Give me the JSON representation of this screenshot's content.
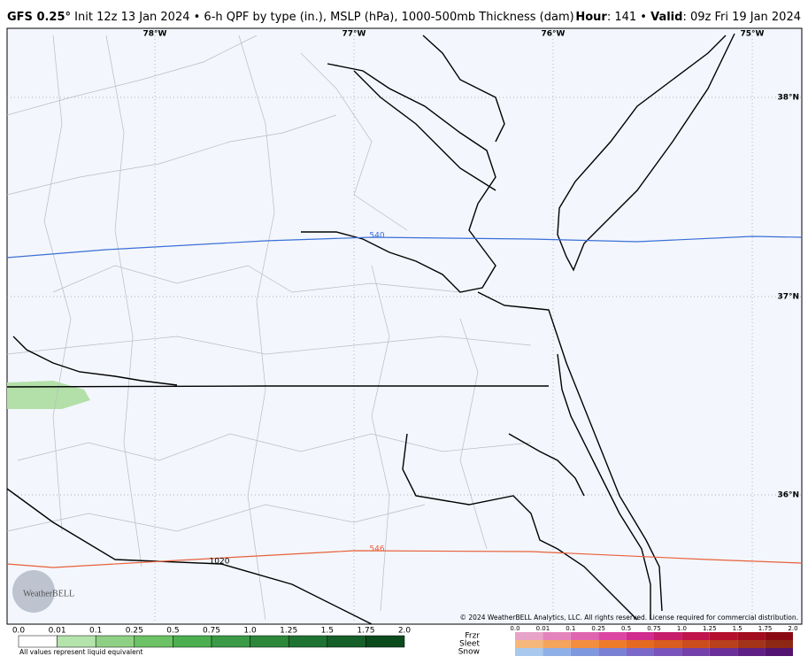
{
  "header": {
    "title": "GFS 0.25°",
    "init": "Init 12z 13 Jan 2024 • 6-h QPF by type (in.), MSLP (hPa), 1000-500mb Thickness (dam)",
    "hour_label": "Hour",
    "hour": ": 141 •",
    "valid_label": "Valid",
    "valid": ": 09z Fri 19 Jan 2024"
  },
  "map": {
    "lon_labels": [
      "78°W",
      "77°W",
      "76°W",
      "75°W"
    ],
    "lat_labels": [
      "38°N",
      "37°N",
      "36°N"
    ],
    "contour_labels": [
      "540",
      "546",
      "1020"
    ],
    "logo": "WeatherBELL",
    "copyright": "© 2024 WeatherBELL Analytics, LLC. All rights reserved. License required for commercial distribution."
  },
  "legend": {
    "qpf": {
      "ticks": [
        "0.0",
        "0.01",
        "0.1",
        "0.25",
        "0.5",
        "0.75",
        "1.0",
        "1.25",
        "1.5",
        "1.75",
        "2.0"
      ],
      "note": "All values represent liquid equivalent"
    },
    "ptype": {
      "types": [
        "Frzr",
        "Sleet",
        "Snow"
      ],
      "ticks": [
        "0.0",
        "0.01",
        "0.1",
        "0.25",
        "0.5",
        "0.75",
        "1.0",
        "1.25",
        "1.5",
        "1.75",
        "2.0"
      ]
    }
  }
}
